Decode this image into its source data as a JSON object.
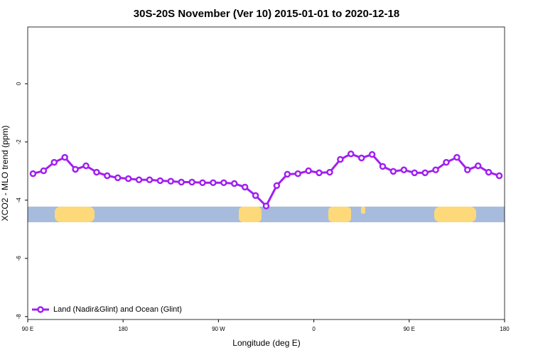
{
  "chart_data": {
    "type": "line",
    "title": "30S-20S November (Ver 10)   2015-01-01 to 2020-12-18",
    "x_label": "Longitude (deg E)",
    "y_label": "XCO2 - MLO trend (ppm)",
    "x": [
      95,
      105,
      115,
      125,
      135,
      145,
      155,
      165,
      175,
      185,
      195,
      205,
      215,
      225,
      235,
      245,
      255,
      265,
      275,
      285,
      295,
      305,
      315,
      325,
      335,
      345,
      355,
      365,
      375,
      385,
      395,
      405,
      415,
      425,
      435,
      445,
      455,
      465,
      475,
      485,
      495,
      505,
      515,
      525,
      535
    ],
    "series": [
      {
        "name": "Land (Nadir&Glint) and Ocean (Glint)",
        "color": "#a020f0",
        "values": [
          -3.09,
          -2.99,
          -2.7,
          -2.53,
          -2.94,
          -2.82,
          -3.04,
          -3.16,
          -3.23,
          -3.26,
          -3.3,
          -3.3,
          -3.33,
          -3.35,
          -3.38,
          -3.38,
          -3.4,
          -3.4,
          -3.4,
          -3.43,
          -3.55,
          -3.84,
          -4.2,
          -3.5,
          -3.11,
          -3.09,
          -2.99,
          -3.06,
          -3.04,
          -2.6,
          -2.41,
          -2.55,
          -2.43,
          -2.84,
          -3.01,
          -2.96,
          -3.06,
          -3.06,
          -2.96,
          -2.7,
          -2.53,
          -2.96,
          -2.82,
          -3.04,
          -3.16
        ]
      }
    ],
    "xlim": [
      90,
      540
    ],
    "xticks": [
      {
        "value": 90,
        "label": "90 E"
      },
      180,
      {
        "value": 270,
        "label": "90 W"
      },
      {
        "value": 360,
        "label": "0"
      },
      {
        "value": 450,
        "label": "90 E"
      },
      {
        "value": 540,
        "label": "180"
      }
    ],
    "ylim": [
      -8.1,
      1.95
    ],
    "yticks": [
      0,
      -2,
      -4,
      -6,
      -8
    ],
    "legend": "bottom-left"
  }
}
